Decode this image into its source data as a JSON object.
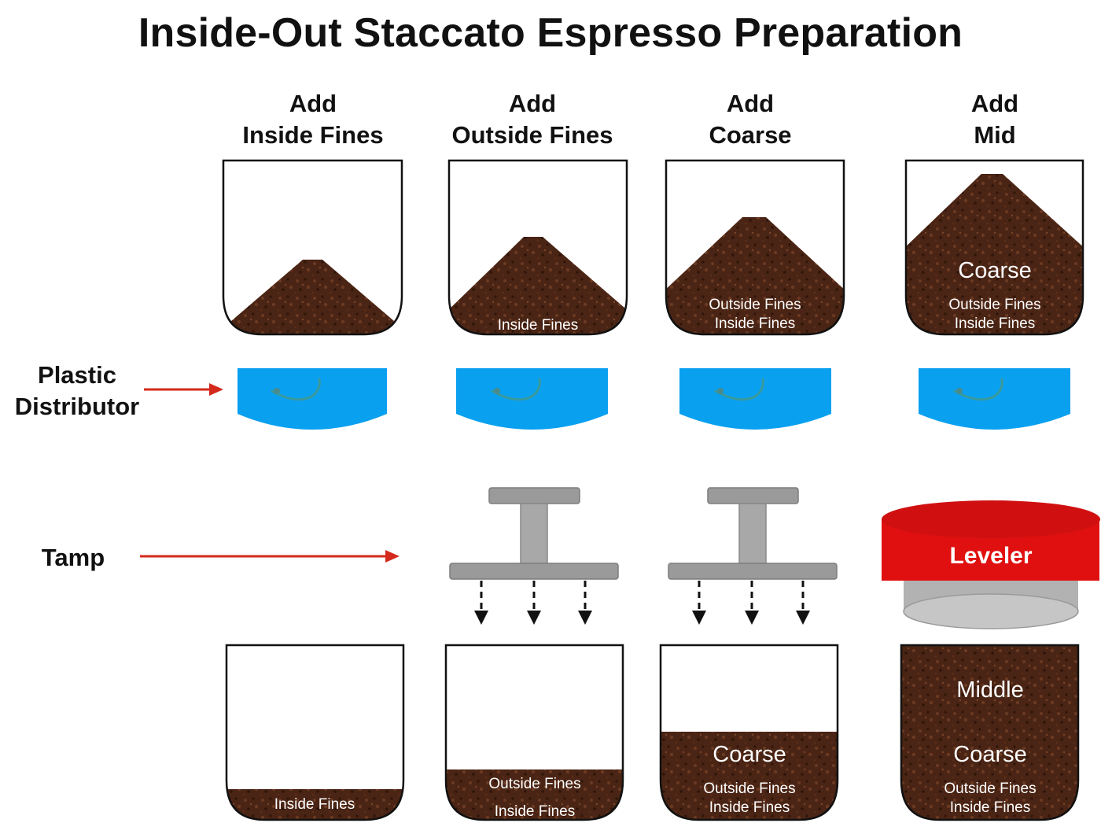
{
  "title": "Inside-Out Staccato Espresso Preparation",
  "steps": [
    {
      "line1": "Add",
      "line2": "Inside Fines"
    },
    {
      "line1": "Add",
      "line2": "Outside Fines"
    },
    {
      "line1": "Add",
      "line2": "Coarse"
    },
    {
      "line1": "Add",
      "line2": "Mid"
    }
  ],
  "side_labels": {
    "distributor_line1": "Plastic",
    "distributor_line2": "Distributor",
    "tamp": "Tamp"
  },
  "leveler": "Leveler",
  "top_layers": {
    "step2": [
      "Inside Fines"
    ],
    "step3": [
      "Outside Fines",
      "Inside Fines"
    ],
    "step4": [
      "Coarse",
      "Outside Fines",
      "Inside Fines"
    ]
  },
  "bottom_layers": {
    "step1": [
      "Inside Fines"
    ],
    "step2": [
      "Outside Fines",
      "Inside Fines"
    ],
    "step3": [
      "Coarse",
      "Outside Fines",
      "Inside Fines"
    ],
    "step4": [
      "Middle",
      "Coarse",
      "Outside Fines",
      "Inside Fines"
    ]
  },
  "colors": {
    "coffee": "#4a2414",
    "distributor": "#0aa0f0",
    "tamper": "#9a9a9a",
    "leveler": "#e01010",
    "arrow": "#d42a1e"
  }
}
